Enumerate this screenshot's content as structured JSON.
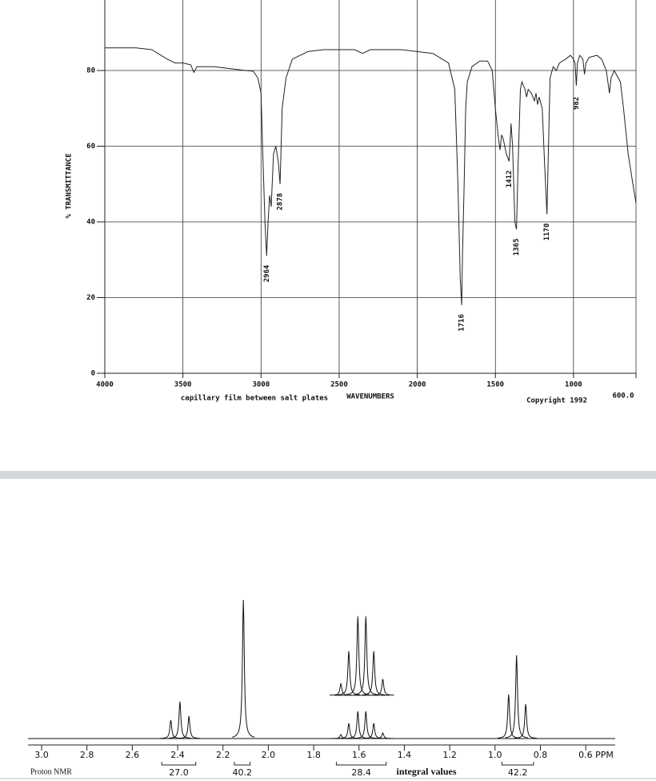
{
  "chart_data": [
    {
      "type": "ir",
      "y_label": "% TRANSMITTANCE",
      "x_label": "WAVENUMBERS",
      "note": "capillary film between salt plates",
      "copyright": "Copyright 1992",
      "color": "#222222",
      "xlim": [
        4000,
        600
      ],
      "ylim": [
        0,
        100
      ],
      "xticks": [
        4000,
        3500,
        3000,
        2500,
        2000,
        1500,
        1000,
        {
          "value": 600,
          "label": "600.0"
        }
      ],
      "yticks": [
        0,
        20,
        40,
        60,
        80
      ],
      "grid": true,
      "x": [
        4000,
        3800,
        3700,
        3600,
        3550,
        3500,
        3450,
        3430,
        3410,
        3300,
        3200,
        3100,
        3050,
        3020,
        3000,
        2990,
        2975,
        2964,
        2955,
        2945,
        2935,
        2920,
        2905,
        2890,
        2878,
        2865,
        2840,
        2800,
        2700,
        2600,
        2400,
        2350,
        2300,
        2100,
        2000,
        1900,
        1800,
        1760,
        1740,
        1725,
        1716,
        1710,
        1700,
        1690,
        1680,
        1650,
        1600,
        1550,
        1520,
        1500,
        1480,
        1470,
        1460,
        1450,
        1430,
        1412,
        1400,
        1390,
        1375,
        1365,
        1355,
        1340,
        1330,
        1310,
        1300,
        1290,
        1270,
        1250,
        1240,
        1230,
        1220,
        1200,
        1185,
        1170,
        1160,
        1150,
        1130,
        1110,
        1090,
        1050,
        1020,
        1000,
        990,
        982,
        975,
        960,
        940,
        930,
        920,
        900,
        850,
        820,
        790,
        770,
        760,
        740,
        700,
        680,
        650,
        620,
        600
      ],
      "values": [
        86,
        86,
        85.5,
        83,
        82,
        82,
        81.5,
        79.5,
        81,
        81,
        80.5,
        80,
        79.8,
        78,
        74,
        60,
        40,
        31,
        40,
        47,
        44,
        58,
        60,
        56,
        50,
        70,
        78,
        83,
        85,
        85.5,
        85.5,
        84.5,
        85.5,
        85.5,
        85,
        84.5,
        82,
        75,
        50,
        25,
        18,
        32,
        50,
        70,
        77,
        81,
        82.5,
        82.5,
        80,
        70,
        62,
        59,
        63,
        62,
        58,
        56,
        66,
        60,
        40,
        38,
        55,
        75,
        77,
        75,
        73,
        75,
        74,
        72,
        74,
        71,
        73,
        70,
        55,
        42,
        60,
        78,
        81,
        80,
        82,
        83,
        84,
        83,
        82,
        76,
        82,
        84,
        83,
        79,
        82,
        83.5,
        84,
        83,
        80,
        74,
        78,
        80,
        77,
        70,
        58,
        50,
        45
      ],
      "peak_labels": [
        2964,
        2878,
        1716,
        1412,
        1365,
        1170,
        982
      ]
    },
    {
      "type": "nmr",
      "title": "Proton NMR",
      "integral_label": "integral values",
      "color": "#111111",
      "xlim": [
        3.06,
        0.47
      ],
      "ylim": [
        0,
        180
      ],
      "xticks": [
        {
          "value": 3,
          "label": "3.0"
        },
        2.8,
        2.6,
        2.4,
        2.2,
        {
          "value": 2,
          "label": "2.0"
        },
        1.8,
        1.6,
        1.4,
        1.2,
        {
          "value": 1,
          "label": "1.0"
        },
        0.8,
        {
          "value": 0.6,
          "label": "0.6 PPM"
        }
      ],
      "x": [
        2.43,
        2.39,
        2.35,
        2.11,
        1.68,
        1.645,
        1.605,
        1.57,
        1.535,
        1.495,
        0.94,
        0.905,
        0.865
      ],
      "values": [
        23,
        46,
        28,
        173,
        5,
        19,
        34,
        34,
        19,
        7,
        55,
        104,
        43
      ],
      "integrals": {
        "ranges": [
          [
            2.47,
            2.32
          ],
          [
            2.15,
            2.08
          ],
          [
            1.7,
            1.48
          ],
          [
            0.97,
            0.83
          ]
        ],
        "values": [
          27,
          40.2,
          28.4,
          42.2
        ],
        "value_labels": [
          "27.0",
          "40.2",
          "28.4",
          "42.2"
        ]
      }
    }
  ]
}
